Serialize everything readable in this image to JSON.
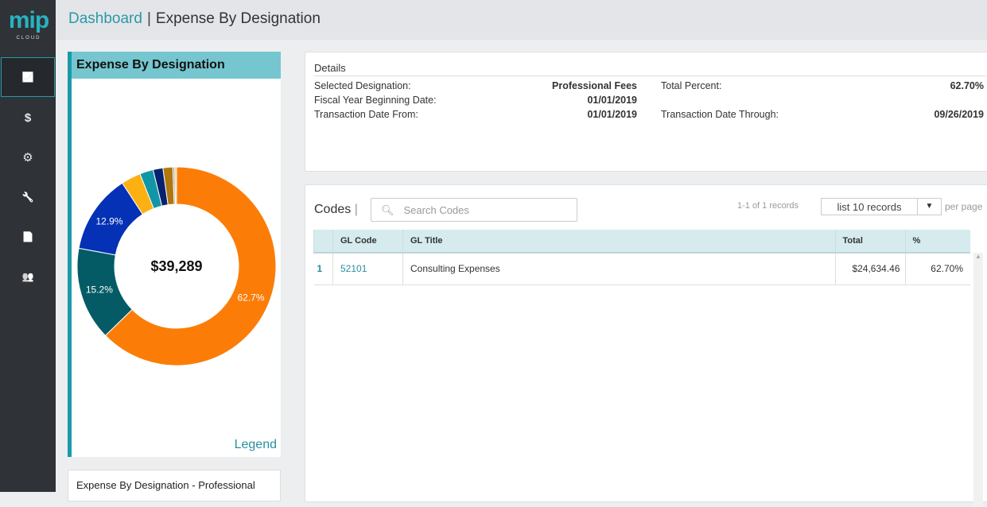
{
  "header": {
    "breadcrumb": "Dashboard",
    "separator": "|",
    "title": "Expense By Designation"
  },
  "logo": {
    "text": "mip",
    "subtext": "CLOUD"
  },
  "sidebar": {
    "items": [
      {
        "icon": "line-chart-icon",
        "glyph": "📈",
        "active": true
      },
      {
        "icon": "dollar-icon",
        "glyph": "$",
        "active": false
      },
      {
        "icon": "gears-icon",
        "glyph": "⚙",
        "active": false
      },
      {
        "icon": "wrench-icon",
        "glyph": "🔧",
        "active": false
      },
      {
        "icon": "document-icon",
        "glyph": "📄",
        "active": false
      },
      {
        "icon": "users-icon",
        "glyph": "👥",
        "active": false
      }
    ]
  },
  "chart_card": {
    "title": "Expense By Designation",
    "center_total": "$39,289",
    "legend_link": "Legend"
  },
  "chart_data": {
    "type": "pie",
    "donut": true,
    "start": "top",
    "direction": "clockwise",
    "values": [
      62.7,
      15.2,
      12.9,
      3.2,
      2.2,
      1.6,
      1.6,
      0.3,
      0.3
    ],
    "labels": [
      "62.7%",
      "15.2%",
      "12.9%",
      "",
      "",
      "",
      "",
      "",
      ""
    ],
    "colors": [
      "#fb7d08",
      "#045b66",
      "#0431b5",
      "#fcb012",
      "#1196a6",
      "#06226e",
      "#b07710",
      "#999999",
      "#f4c97a"
    ],
    "center_label": "$39,289"
  },
  "sub_card": {
    "title": "Expense By Designation - Professional"
  },
  "details": {
    "heading": "Details",
    "rows": [
      {
        "k1": "Selected Designation:",
        "v1": "Professional Fees",
        "k2": "Total Percent:",
        "v2": "62.70%"
      },
      {
        "k1": "Fiscal Year Beginning Date:",
        "v1": "01/01/2019",
        "k2": "",
        "v2": ""
      },
      {
        "k1": "Transaction Date From:",
        "v1": "01/01/2019",
        "k2": "Transaction Date Through:",
        "v2": "09/26/2019"
      }
    ]
  },
  "codes": {
    "title": "Codes",
    "search_placeholder": "Search Codes",
    "record_count": "1-1 of 1 records",
    "page_size": "list 10 records",
    "per_page": "per page",
    "columns": [
      "",
      "GL Code",
      "GL Title",
      "Total",
      "%"
    ],
    "rows": [
      {
        "n": "1",
        "code": "52101",
        "title": "Consulting Expenses",
        "total": "$24,634.46",
        "pct": "62.70%"
      }
    ]
  }
}
